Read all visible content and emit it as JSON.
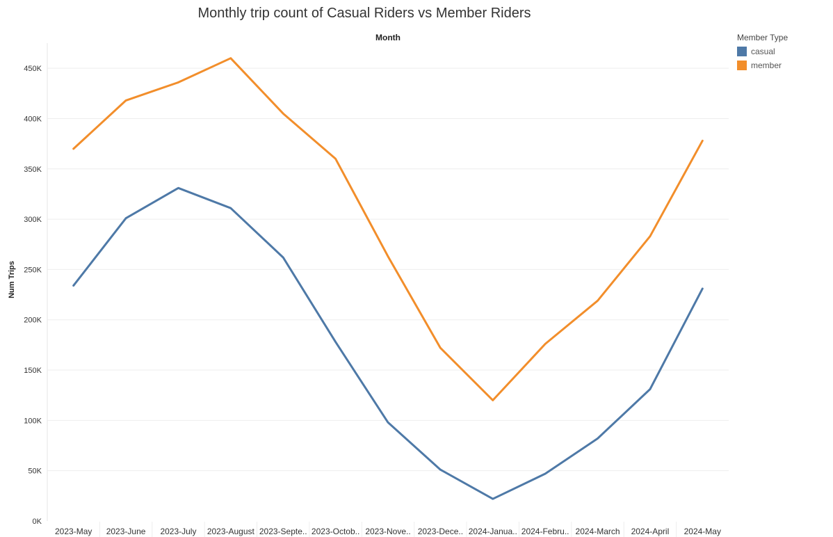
{
  "chart_data": {
    "type": "line",
    "title": "Monthly trip count of Casual Riders vs Member Riders",
    "xlabel": "Month",
    "ylabel": "Num Trips",
    "categories": [
      "2023-May",
      "2023-June",
      "2023-July",
      "2023-August",
      "2023-Septe..",
      "2023-Octob..",
      "2023-Nove..",
      "2023-Dece..",
      "2024-Janua..",
      "2024-Febru..",
      "2024-March",
      "2024-April",
      "2024-May"
    ],
    "ylim": [
      0,
      475000
    ],
    "yticks": [
      0,
      50000,
      100000,
      150000,
      200000,
      250000,
      300000,
      350000,
      400000,
      450000
    ],
    "ytick_labels": [
      "0K",
      "50K",
      "100K",
      "150K",
      "200K",
      "250K",
      "300K",
      "350K",
      "400K",
      "450K"
    ],
    "grid": true,
    "legend": {
      "title": "Member Type",
      "placement": "top-right"
    },
    "series": [
      {
        "name": "casual",
        "color": "#4e79a7",
        "values": [
          234000,
          301000,
          331000,
          311000,
          262000,
          178000,
          98000,
          51000,
          22000,
          47000,
          82000,
          131000,
          231000
        ]
      },
      {
        "name": "member",
        "color": "#f28e2b",
        "values": [
          370000,
          418000,
          436000,
          460000,
          405000,
          360000,
          263000,
          172000,
          120000,
          176000,
          219000,
          283000,
          378000
        ]
      }
    ]
  }
}
